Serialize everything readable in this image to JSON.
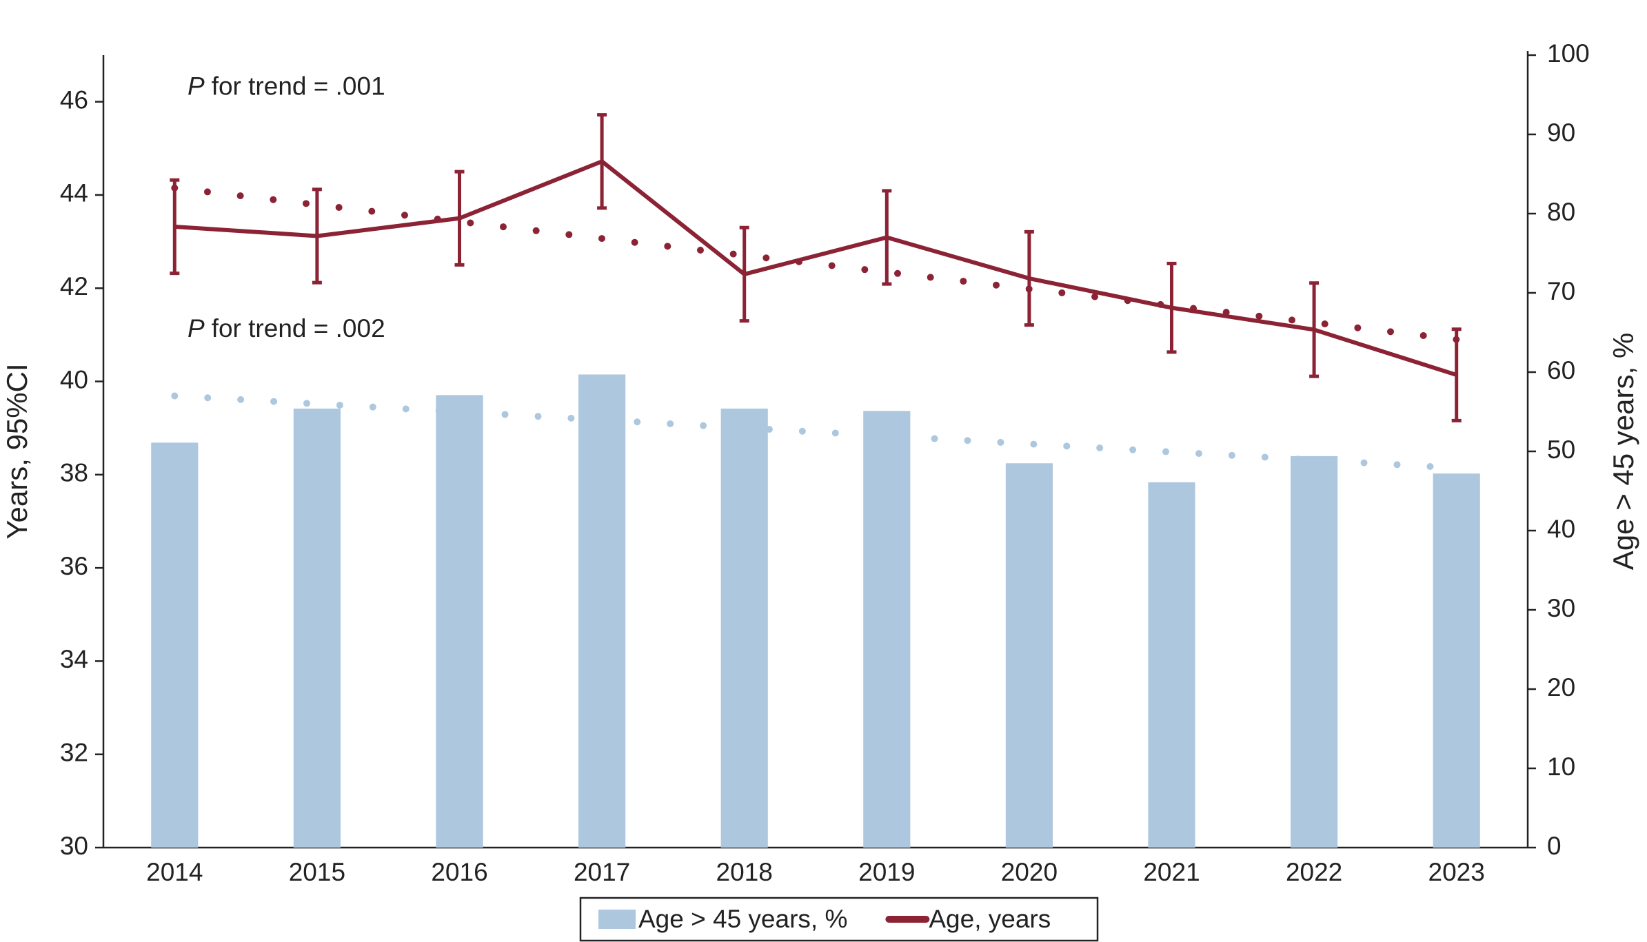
{
  "chart_data": {
    "type": "bar-line",
    "categories": [
      "2014",
      "2015",
      "2016",
      "2017",
      "2018",
      "2019",
      "2020",
      "2021",
      "2022",
      "2023"
    ],
    "series": [
      {
        "name": "Age > 45 years, %",
        "type": "bar",
        "axis": "y2",
        "color": "#adc8de",
        "values": [
          51.1,
          55.4,
          57.1,
          59.7,
          55.4,
          55.1,
          48.5,
          46.1,
          49.4,
          47.2
        ],
        "trend": [
          57.0,
          47.9
        ]
      },
      {
        "name": "Age, years",
        "type": "line",
        "axis": "y",
        "color": "#8b2335",
        "values": [
          43.32,
          43.12,
          43.5,
          44.72,
          42.3,
          43.09,
          42.21,
          41.58,
          41.11,
          40.14
        ],
        "errors": [
          1.0,
          1.0,
          1.0,
          1.0,
          1.0,
          1.0,
          1.0,
          0.95,
          1.0,
          0.98
        ],
        "trend": [
          44.15,
          40.9
        ]
      }
    ],
    "annotations": [
      {
        "italic": "P",
        "text": "for trend = .001",
        "at": 46.3
      },
      {
        "italic": "P",
        "text": "for trend = .002",
        "at": 41.1
      }
    ],
    "ylabel": "Years, 95%CI",
    "y2label": "Age > 45 years, %",
    "ylim": [
      30,
      47
    ],
    "yticks": [
      30,
      32,
      34,
      36,
      38,
      40,
      42,
      44,
      46
    ],
    "y2lim": [
      0,
      100
    ],
    "y2ticks": [
      0,
      10,
      20,
      30,
      40,
      50,
      60,
      70,
      80,
      90,
      100
    ],
    "legend": "bottom",
    "grid": false
  }
}
